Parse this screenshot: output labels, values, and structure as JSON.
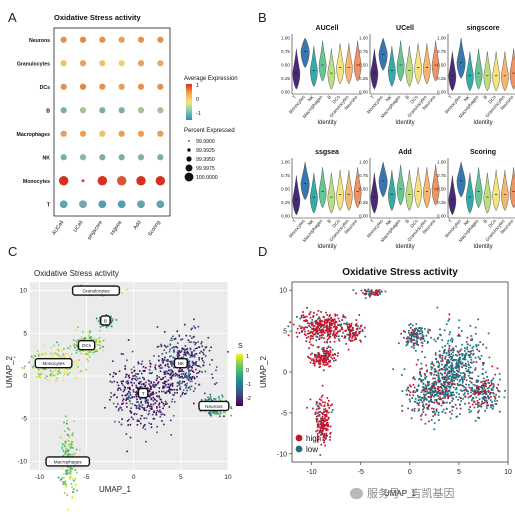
{
  "panels": {
    "A": "A",
    "B": "B",
    "C": "C",
    "D": "D"
  },
  "watermark": "服务号 · 吉凯基因",
  "chart_data": [
    {
      "type": "dotplot",
      "panel": "A",
      "title": "Oxidative Stress activity",
      "rows": [
        "Neurons",
        "Granulocytes",
        "DCs",
        "B",
        "Macrophages",
        "NK",
        "Monocytes",
        "T"
      ],
      "columns": [
        "AUCell",
        "UCell",
        "singscore",
        "ssgsea",
        "Add",
        "Scoring"
      ],
      "avg_expression": [
        [
          0.7,
          0.8,
          0.7,
          0.6,
          0.7,
          0.7
        ],
        [
          0.3,
          0.6,
          0.3,
          0.2,
          0.6,
          0.5
        ],
        [
          0.7,
          0.8,
          0.7,
          0.6,
          0.7,
          0.7
        ],
        [
          -0.9,
          -0.6,
          -0.9,
          -0.9,
          -0.6,
          -0.6
        ],
        [
          0.6,
          0.6,
          0.3,
          0.6,
          0.6,
          0.6
        ],
        [
          -0.9,
          -0.8,
          -0.9,
          -0.9,
          -0.9,
          -0.9
        ],
        [
          1.5,
          1.3,
          1.5,
          1.2,
          1.5,
          1.5
        ],
        [
          -1.1,
          -1.0,
          -1.2,
          -1.2,
          -1.1,
          -1.1
        ]
      ],
      "pct_expressed": [
        [
          99.995,
          99.995,
          99.995,
          99.995,
          99.995,
          99.995
        ],
        [
          99.995,
          99.995,
          99.995,
          99.995,
          99.995,
          99.995
        ],
        [
          99.995,
          99.995,
          99.995,
          99.995,
          99.995,
          99.995
        ],
        [
          99.995,
          99.995,
          99.995,
          99.995,
          99.995,
          99.995
        ],
        [
          99.995,
          99.995,
          99.995,
          99.995,
          99.995,
          99.995
        ],
        [
          99.995,
          99.995,
          99.995,
          99.995,
          99.995,
          99.995
        ],
        [
          100.0,
          99.99,
          100.0,
          100.0,
          100.0,
          100.0
        ],
        [
          99.9975,
          99.9975,
          99.9975,
          99.9975,
          99.9975,
          99.9975
        ]
      ],
      "legend_color_title": "Average Expression",
      "legend_color_ticks": [
        "1",
        "0",
        "-1"
      ],
      "legend_size_title": "Percent Expressed",
      "legend_size_values": [
        "99.9900",
        "99.9925",
        "99.9950",
        "99.9975",
        "100.0000"
      ],
      "colors": {
        "high": "#d7301f",
        "mid": "#f5e67a",
        "low": "#2b8cbe"
      }
    },
    {
      "type": "violin",
      "panel": "B",
      "xlabel": "Identity",
      "categories": [
        "T",
        "Monocytes",
        "NK",
        "Macrophages",
        "B",
        "DCs",
        "Granulocytes",
        "Neurons"
      ],
      "yticks": [
        "0.00",
        "0.25",
        "0.50",
        "0.75",
        "1.00"
      ],
      "colors": [
        "#3f1e6e",
        "#2e6fab",
        "#2aa6a6",
        "#5fc48e",
        "#b9dd7a",
        "#f3e37a",
        "#f6b36b",
        "#ee8e5b"
      ],
      "facets": [
        {
          "title": "AUCell",
          "medians": [
            0.35,
            0.75,
            0.4,
            0.5,
            0.35,
            0.45,
            0.45,
            0.5
          ]
        },
        {
          "title": "UCell",
          "medians": [
            0.35,
            0.7,
            0.4,
            0.5,
            0.4,
            0.45,
            0.45,
            0.5
          ]
        },
        {
          "title": "singscore",
          "medians": [
            0.3,
            0.55,
            0.3,
            0.35,
            0.3,
            0.3,
            0.3,
            0.35
          ]
        },
        {
          "title": "ssgsea",
          "medians": [
            0.3,
            0.6,
            0.35,
            0.45,
            0.35,
            0.4,
            0.4,
            0.45
          ]
        },
        {
          "title": "Add",
          "medians": [
            0.35,
            0.65,
            0.4,
            0.5,
            0.4,
            0.45,
            0.45,
            0.5
          ]
        },
        {
          "title": "Scoring",
          "medians": [
            0.3,
            0.65,
            0.35,
            0.45,
            0.35,
            0.4,
            0.4,
            0.45
          ]
        }
      ]
    },
    {
      "type": "scatter",
      "panel": "C",
      "title": "Oxidative Stress activity",
      "xlabel": "UMAP_1",
      "ylabel": "UMAP_2",
      "xticks": [
        "-10",
        "-5",
        "0",
        "5",
        "10"
      ],
      "yticks": [
        "10",
        "5",
        "0",
        "-5",
        "-10"
      ],
      "xlim": [
        -11,
        10
      ],
      "ylim": [
        -11,
        11
      ],
      "legend_title": "S",
      "legend_ticks": [
        "1",
        "0",
        "-1",
        "-2"
      ],
      "clusters": [
        {
          "label": "Granulocytes",
          "x": -4,
          "y": 10,
          "score": 0.3
        },
        {
          "label": "Monocytes",
          "x": -8.5,
          "y": 1.5,
          "score": 0.7
        },
        {
          "label": "DCs",
          "x": -5,
          "y": 3.6,
          "score": 0.4
        },
        {
          "label": "B",
          "x": -3,
          "y": 6.5,
          "score": -0.3
        },
        {
          "label": "NK",
          "x": 5,
          "y": 1.5,
          "score": -1.5
        },
        {
          "label": "T",
          "x": 1,
          "y": -2,
          "score": -1.8
        },
        {
          "label": "Neurons",
          "x": 8.5,
          "y": -3.5,
          "score": -0.5
        },
        {
          "label": "Macrophages",
          "x": -7,
          "y": -10,
          "score": 0.3
        }
      ]
    },
    {
      "type": "scatter",
      "panel": "D",
      "title": "Oxidative Stress activity",
      "xlabel": "UMAP_1",
      "ylabel": "UMAP_2",
      "xticks": [
        "-10",
        "-5",
        "0",
        "5",
        "10"
      ],
      "yticks": [
        "10",
        "5",
        "0",
        "-5",
        "-10"
      ],
      "xlim": [
        -12,
        10
      ],
      "ylim": [
        -11,
        11
      ],
      "legend": [
        {
          "label": "high",
          "color": "#c0152f"
        },
        {
          "label": "low",
          "color": "#1f6f80"
        }
      ]
    }
  ]
}
